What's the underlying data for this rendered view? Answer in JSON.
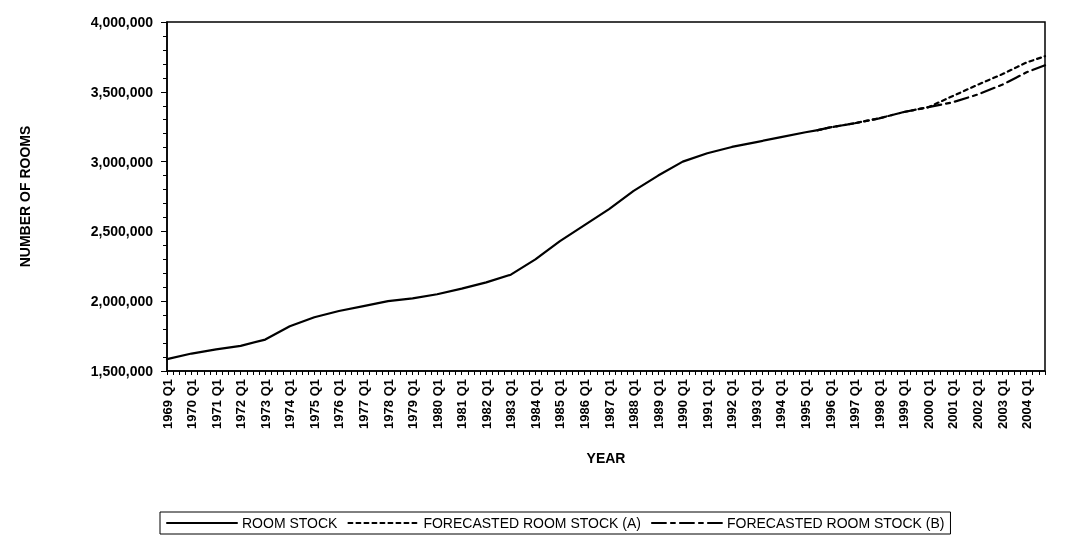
{
  "chart_data": {
    "type": "line",
    "xlabel": "YEAR",
    "ylabel": "NUMBER OF ROOMS",
    "categories": [
      "1969 Q1",
      null,
      null,
      null,
      "1970 Q1",
      null,
      null,
      null,
      "1971 Q1",
      null,
      null,
      null,
      "1972 Q1",
      null,
      null,
      null,
      "1973 Q1",
      null,
      null,
      null,
      "1974 Q1",
      null,
      null,
      null,
      "1975 Q1",
      null,
      null,
      null,
      "1976 Q1",
      null,
      null,
      null,
      "1977 Q1",
      null,
      null,
      null,
      "1978 Q1",
      null,
      null,
      null,
      "1979 Q1",
      null,
      null,
      null,
      "1980 Q1",
      null,
      null,
      null,
      "1981 Q1",
      null,
      null,
      null,
      "1982 Q1",
      null,
      null,
      null,
      "1983 Q1",
      null,
      null,
      null,
      "1984 Q1",
      null,
      null,
      null,
      "1985 Q1",
      null,
      null,
      null,
      "1986 Q1",
      null,
      null,
      null,
      "1987 Q1",
      null,
      null,
      null,
      "1988 Q1",
      null,
      null,
      null,
      "1989 Q1",
      null,
      null,
      null,
      "1990 Q1",
      null,
      null,
      null,
      "1991 Q1",
      null,
      null,
      null,
      "1992 Q1",
      null,
      null,
      null,
      "1993 Q1",
      null,
      null,
      null,
      "1994 Q1",
      null,
      null,
      null,
      "1995 Q1",
      null,
      null,
      null,
      "1996 Q1",
      null,
      null,
      null,
      "1997 Q1",
      null,
      null,
      null,
      "1998 Q1",
      null,
      null,
      null,
      "1999 Q1",
      null,
      null,
      null,
      "2000 Q1",
      null,
      null,
      null,
      "2001 Q1",
      null,
      null,
      null,
      "2002 Q1",
      null,
      null,
      null,
      "2003 Q1",
      null,
      null,
      null,
      "2004 Q1",
      null,
      null,
      null
    ],
    "ylim": [
      1500000,
      4000000
    ],
    "yticks": [
      {
        "value": 1500000,
        "label": "1,500,000"
      },
      {
        "value": 2000000,
        "label": "2,000,000"
      },
      {
        "value": 2500000,
        "label": "2,500,000"
      },
      {
        "value": 3000000,
        "label": "3,000,000"
      },
      {
        "value": 3500000,
        "label": "3,500,000"
      },
      {
        "value": 4000000,
        "label": "4,000,000"
      }
    ],
    "grid": false,
    "legend": "bottom",
    "marker": "none",
    "series": [
      {
        "name": "ROOM STOCK",
        "color": "#000000",
        "line_style": "solid",
        "values": [
          1585000,
          null,
          null,
          null,
          1625000,
          null,
          null,
          null,
          1655000,
          null,
          null,
          null,
          1680000,
          null,
          null,
          null,
          1725000,
          null,
          null,
          null,
          1820000,
          null,
          null,
          null,
          1885000,
          null,
          null,
          null,
          1930000,
          null,
          null,
          null,
          1965000,
          null,
          null,
          null,
          2000000,
          null,
          null,
          null,
          2020000,
          null,
          null,
          null,
          2050000,
          null,
          null,
          null,
          2090000,
          null,
          null,
          null,
          2135000,
          null,
          null,
          null,
          2190000,
          null,
          null,
          null,
          2300000,
          null,
          null,
          null,
          2430000,
          null,
          null,
          null,
          2545000,
          null,
          null,
          null,
          2660000,
          null,
          null,
          null,
          2790000,
          null,
          null,
          null,
          2900000,
          null,
          null,
          null,
          3000000,
          null,
          null,
          null,
          3060000,
          null,
          null,
          null,
          3105000,
          null,
          null,
          null,
          3140000,
          null,
          null,
          null,
          3175000,
          null,
          null,
          null,
          3210000,
          null,
          3225000,
          null,
          null,
          null,
          null,
          null,
          null,
          null,
          null,
          null,
          null,
          null,
          null,
          null,
          null,
          null,
          null,
          null,
          null,
          null,
          null,
          null,
          null,
          null,
          null,
          null,
          null,
          null,
          null,
          null,
          null,
          null,
          null,
          null,
          null,
          null,
          null,
          null
        ]
      },
      {
        "name": "FORECASTED ROOM STOCK (A)",
        "color": "#000000",
        "line_style": "dotted",
        "values": [
          null,
          null,
          null,
          null,
          null,
          null,
          null,
          null,
          null,
          null,
          null,
          null,
          null,
          null,
          null,
          null,
          null,
          null,
          null,
          null,
          null,
          null,
          null,
          null,
          null,
          null,
          null,
          null,
          null,
          null,
          null,
          null,
          null,
          null,
          null,
          null,
          null,
          null,
          null,
          null,
          null,
          null,
          null,
          null,
          null,
          null,
          null,
          null,
          null,
          null,
          null,
          null,
          null,
          null,
          null,
          null,
          null,
          null,
          null,
          null,
          null,
          null,
          null,
          null,
          null,
          null,
          null,
          null,
          null,
          null,
          null,
          null,
          null,
          null,
          null,
          null,
          null,
          null,
          null,
          null,
          null,
          null,
          null,
          null,
          null,
          null,
          null,
          null,
          null,
          null,
          null,
          null,
          null,
          null,
          null,
          null,
          null,
          null,
          null,
          null,
          null,
          null,
          null,
          null,
          null,
          null,
          3225000,
          null,
          3245000,
          null,
          null,
          null,
          3275000,
          null,
          null,
          null,
          3310000,
          null,
          null,
          null,
          3355000,
          null,
          null,
          null,
          3390000,
          null,
          null,
          null,
          3470000,
          null,
          null,
          null,
          3550000,
          null,
          null,
          null,
          3625000,
          null,
          null,
          null,
          3710000,
          null,
          null,
          3755000
        ]
      },
      {
        "name": "FORECASTED ROOM STOCK (B)",
        "color": "#000000",
        "line_style": "dashed",
        "values": [
          null,
          null,
          null,
          null,
          null,
          null,
          null,
          null,
          null,
          null,
          null,
          null,
          null,
          null,
          null,
          null,
          null,
          null,
          null,
          null,
          null,
          null,
          null,
          null,
          null,
          null,
          null,
          null,
          null,
          null,
          null,
          null,
          null,
          null,
          null,
          null,
          null,
          null,
          null,
          null,
          null,
          null,
          null,
          null,
          null,
          null,
          null,
          null,
          null,
          null,
          null,
          null,
          null,
          null,
          null,
          null,
          null,
          null,
          null,
          null,
          null,
          null,
          null,
          null,
          null,
          null,
          null,
          null,
          null,
          null,
          null,
          null,
          null,
          null,
          null,
          null,
          null,
          null,
          null,
          null,
          null,
          null,
          null,
          null,
          null,
          null,
          null,
          null,
          null,
          null,
          null,
          null,
          null,
          null,
          null,
          null,
          null,
          null,
          null,
          null,
          null,
          null,
          null,
          null,
          null,
          null,
          3225000,
          null,
          3245000,
          null,
          null,
          null,
          3275000,
          null,
          null,
          null,
          3310000,
          null,
          null,
          null,
          3355000,
          null,
          null,
          null,
          3390000,
          null,
          null,
          null,
          3425000,
          null,
          null,
          null,
          3480000,
          null,
          null,
          null,
          3550000,
          null,
          null,
          null,
          3640000,
          null,
          null,
          3690000
        ]
      }
    ]
  }
}
